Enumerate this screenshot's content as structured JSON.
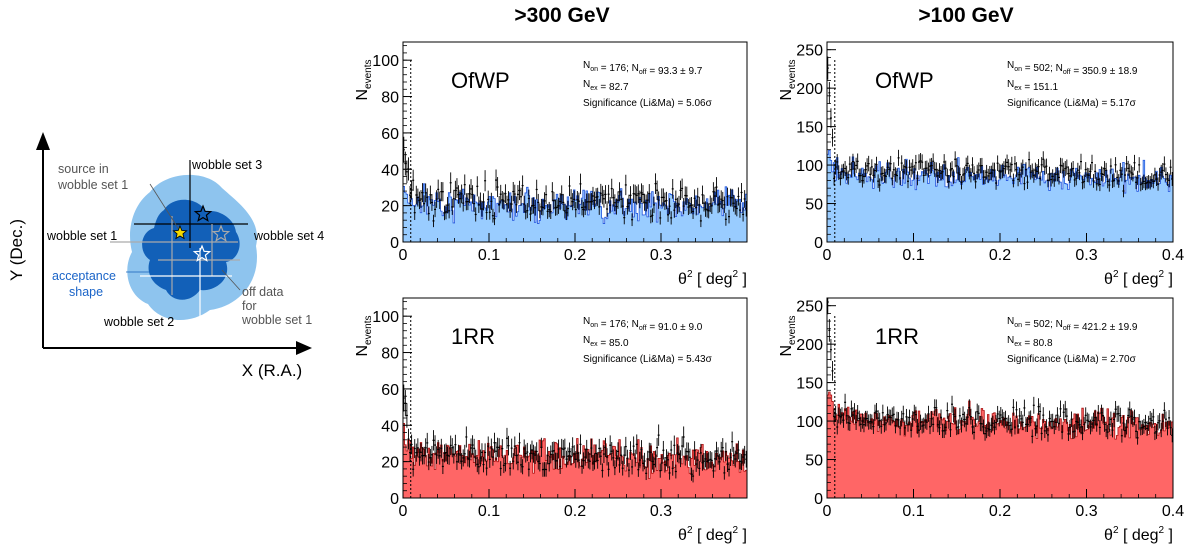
{
  "column_titles": [
    ">300 GeV",
    ">100 GeV"
  ],
  "diagram": {
    "y_axis_label": "Y (Dec.)",
    "x_axis_label": "X (R.A.)",
    "labels": {
      "source_line1": "source in",
      "source_line2": "wobble set 1",
      "wobble_set_3": "wobble set 3",
      "wobble_set_1": "wobble set 1",
      "wobble_set_4": "wobble set 4",
      "wobble_set_2": "wobble set 2",
      "acceptance_line1": "acceptance",
      "acceptance_line2": "shape",
      "off_line1": "off data",
      "off_line2": "for",
      "off_line3": "wobble set 1"
    },
    "colors": {
      "light_blue": "#8ec4ee",
      "dark_blue": "#1260b8",
      "label_blue": "#1a64c8",
      "star_yellow": "#f5d800"
    }
  },
  "chart_data": [
    {
      "type": "bar",
      "panel": "top-left",
      "title": "OfWP",
      "ylabel_main": "N",
      "ylabel_sub": "events",
      "xlabel_main": "θ",
      "xlabel_sup": "2",
      "xlabel_unit": "[ deg",
      "xlabel_unit_sup": "2",
      "xlabel_end": "]",
      "xlim": [
        0,
        0.4
      ],
      "ylim": [
        0,
        110
      ],
      "x_ticks": [
        "0",
        "0.1",
        "0.2",
        "0.3"
      ],
      "x_tick_values": [
        0,
        0.1,
        0.2,
        0.3
      ],
      "y_ticks": [
        "0",
        "20",
        "40",
        "60",
        "80",
        "100"
      ],
      "y_tick_values": [
        0,
        20,
        40,
        60,
        80,
        100
      ],
      "on_series_level": 24,
      "off_series_level": 22,
      "fill_color": "#99ccff",
      "line_color": "#2255dd",
      "stats": {
        "line1": {
          "pre": "N",
          "pre_sub": "on",
          "mid": " = 176; N",
          "mid_sub": "off",
          "post": " = 93.3 ±  9.7"
        },
        "line2": {
          "pre": "N",
          "pre_sub": "ex",
          "post": " = 82.7"
        },
        "line3": "Significance (Li&Ma) = 5.06σ"
      }
    },
    {
      "type": "bar",
      "panel": "top-right",
      "title": "OfWP",
      "ylabel_main": "N",
      "ylabel_sub": "events",
      "xlabel_main": "θ",
      "xlabel_sup": "2",
      "xlabel_unit": "[ deg",
      "xlabel_unit_sup": "2",
      "xlabel_end": "]",
      "xlim": [
        0,
        0.4
      ],
      "ylim": [
        0,
        260
      ],
      "x_ticks": [
        "0",
        "0.1",
        "0.2",
        "0.3",
        "0.4"
      ],
      "x_tick_values": [
        0,
        0.1,
        0.2,
        0.3,
        0.4
      ],
      "y_ticks": [
        "0",
        "50",
        "100",
        "150",
        "200",
        "250"
      ],
      "y_tick_values": [
        0,
        50,
        100,
        150,
        200,
        250
      ],
      "on_series_level": 95,
      "off_series_level": 90,
      "fill_color": "#99ccff",
      "line_color": "#2255dd",
      "stats": {
        "line1": {
          "pre": "N",
          "pre_sub": "on",
          "mid": " = 502; N",
          "mid_sub": "off",
          "post": " = 350.9 ± 18.9"
        },
        "line2": {
          "pre": "N",
          "pre_sub": "ex",
          "post": " = 151.1"
        },
        "line3": "Significance (Li&Ma) = 5.17σ"
      }
    },
    {
      "type": "bar",
      "panel": "bottom-left",
      "title": "1RR",
      "ylabel_main": "N",
      "ylabel_sub": "events",
      "xlabel_main": "θ",
      "xlabel_sup": "2",
      "xlabel_unit": "[ deg",
      "xlabel_unit_sup": "2",
      "xlabel_end": "]",
      "xlim": [
        0,
        0.4
      ],
      "ylim": [
        0,
        110
      ],
      "x_ticks": [
        "0",
        "0.1",
        "0.2",
        "0.3"
      ],
      "x_tick_values": [
        0,
        0.1,
        0.2,
        0.3
      ],
      "y_ticks": [
        "0",
        "20",
        "40",
        "60",
        "80",
        "100"
      ],
      "y_tick_values": [
        0,
        20,
        40,
        60,
        80,
        100
      ],
      "on_series_level": 24,
      "off_series_level": 24,
      "fill_color": "#ff6666",
      "line_color": "#aa1111",
      "stats": {
        "line1": {
          "pre": "N",
          "pre_sub": "on",
          "mid": " = 176; N",
          "mid_sub": "off",
          "post": " = 91.0 ±  9.0"
        },
        "line2": {
          "pre": "N",
          "pre_sub": "ex",
          "post": " = 85.0"
        },
        "line3": "Significance (Li&Ma) = 5.43σ"
      }
    },
    {
      "type": "bar",
      "panel": "bottom-right",
      "title": "1RR",
      "ylabel_main": "N",
      "ylabel_sub": "events",
      "xlabel_main": "θ",
      "xlabel_sup": "2",
      "xlabel_unit": "[ deg",
      "xlabel_unit_sup": "2",
      "xlabel_end": "]",
      "xlim": [
        0,
        0.4
      ],
      "ylim": [
        0,
        260
      ],
      "x_ticks": [
        "0",
        "0.1",
        "0.2",
        "0.3",
        "0.4"
      ],
      "x_tick_values": [
        0,
        0.1,
        0.2,
        0.3,
        0.4
      ],
      "y_ticks": [
        "0",
        "50",
        "100",
        "150",
        "200",
        "250"
      ],
      "y_tick_values": [
        0,
        50,
        100,
        150,
        200,
        250
      ],
      "on_series_level": 105,
      "off_series_level": 105,
      "fill_color": "#ff6666",
      "line_color": "#aa1111",
      "stats": {
        "line1": {
          "pre": "N",
          "pre_sub": "on",
          "mid": " = 502; N",
          "mid_sub": "off",
          "post": " = 421.2 ± 19.9"
        },
        "line2": {
          "pre": "N",
          "pre_sub": "ex",
          "post": " = 80.8"
        },
        "line3": "Significance (Li&Ma) = 2.70σ"
      }
    }
  ]
}
